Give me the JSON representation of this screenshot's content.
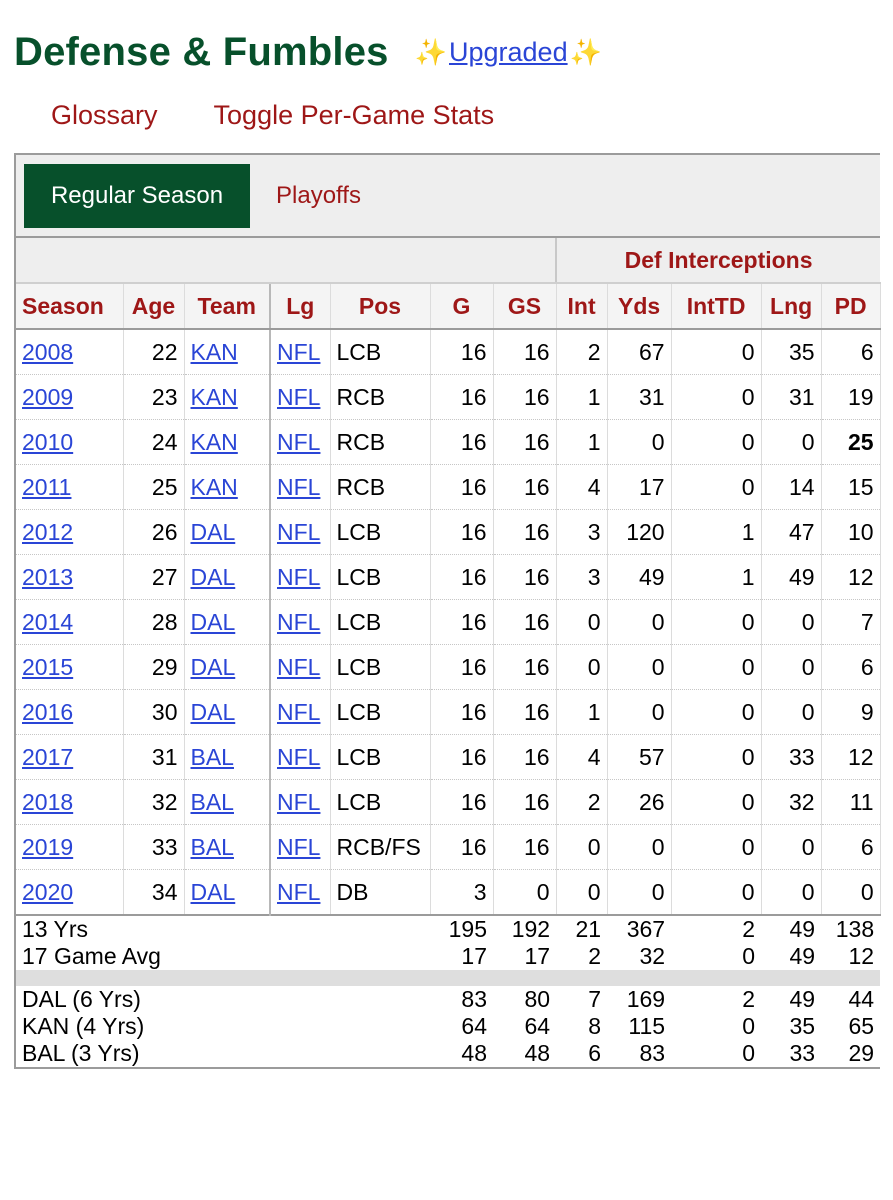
{
  "section": {
    "title": "Defense & Fumbles",
    "sparkle_left": "✨",
    "upgraded_label": "Upgraded",
    "sparkle_right": "✨"
  },
  "links": {
    "glossary": "Glossary",
    "toggle": "Toggle Per-Game Stats"
  },
  "tabs": {
    "regular": "Regular Season",
    "playoffs": "Playoffs"
  },
  "table": {
    "group_header": "Def Interceptions",
    "headers": [
      "Season",
      "Age",
      "Team",
      "Lg",
      "Pos",
      "G",
      "GS",
      "Int",
      "Yds",
      "IntTD",
      "Lng",
      "PD"
    ],
    "rows": [
      [
        "2008",
        "22",
        "KAN",
        "NFL",
        "LCB",
        "16",
        "16",
        "2",
        "67",
        "0",
        "35",
        "6"
      ],
      [
        "2009",
        "23",
        "KAN",
        "NFL",
        "RCB",
        "16",
        "16",
        "1",
        "31",
        "0",
        "31",
        "19"
      ],
      [
        "2010",
        "24",
        "KAN",
        "NFL",
        "RCB",
        "16",
        "16",
        "1",
        "0",
        "0",
        "0",
        "25"
      ],
      [
        "2011",
        "25",
        "KAN",
        "NFL",
        "RCB",
        "16",
        "16",
        "4",
        "17",
        "0",
        "14",
        "15"
      ],
      [
        "2012",
        "26",
        "DAL",
        "NFL",
        "LCB",
        "16",
        "16",
        "3",
        "120",
        "1",
        "47",
        "10"
      ],
      [
        "2013",
        "27",
        "DAL",
        "NFL",
        "LCB",
        "16",
        "16",
        "3",
        "49",
        "1",
        "49",
        "12"
      ],
      [
        "2014",
        "28",
        "DAL",
        "NFL",
        "LCB",
        "16",
        "16",
        "0",
        "0",
        "0",
        "0",
        "7"
      ],
      [
        "2015",
        "29",
        "DAL",
        "NFL",
        "LCB",
        "16",
        "16",
        "0",
        "0",
        "0",
        "0",
        "6"
      ],
      [
        "2016",
        "30",
        "DAL",
        "NFL",
        "LCB",
        "16",
        "16",
        "1",
        "0",
        "0",
        "0",
        "9"
      ],
      [
        "2017",
        "31",
        "BAL",
        "NFL",
        "LCB",
        "16",
        "16",
        "4",
        "57",
        "0",
        "33",
        "12"
      ],
      [
        "2018",
        "32",
        "BAL",
        "NFL",
        "LCB",
        "16",
        "16",
        "2",
        "26",
        "0",
        "32",
        "11"
      ],
      [
        "2019",
        "33",
        "BAL",
        "NFL",
        "RCB/FS",
        "16",
        "16",
        "0",
        "0",
        "0",
        "0",
        "6"
      ],
      [
        "2020",
        "34",
        "DAL",
        "NFL",
        "DB",
        "3",
        "0",
        "0",
        "0",
        "0",
        "0",
        "0"
      ]
    ],
    "bold_cell": {
      "row": 2,
      "col": 11
    },
    "totals": [
      {
        "label": "13 Yrs",
        "values": [
          "195",
          "192",
          "21",
          "367",
          "2",
          "49",
          "138"
        ]
      },
      {
        "label": "17 Game Avg",
        "values": [
          "17",
          "17",
          "2",
          "32",
          "0",
          "49",
          "12"
        ]
      }
    ],
    "teams": [
      {
        "label": "DAL (6 Yrs)",
        "values": [
          "83",
          "80",
          "7",
          "169",
          "2",
          "49",
          "44"
        ]
      },
      {
        "label": "KAN (4 Yrs)",
        "values": [
          "64",
          "64",
          "8",
          "115",
          "0",
          "35",
          "65"
        ]
      },
      {
        "label": "BAL (3 Yrs)",
        "values": [
          "48",
          "48",
          "6",
          "83",
          "0",
          "33",
          "29"
        ]
      }
    ]
  }
}
